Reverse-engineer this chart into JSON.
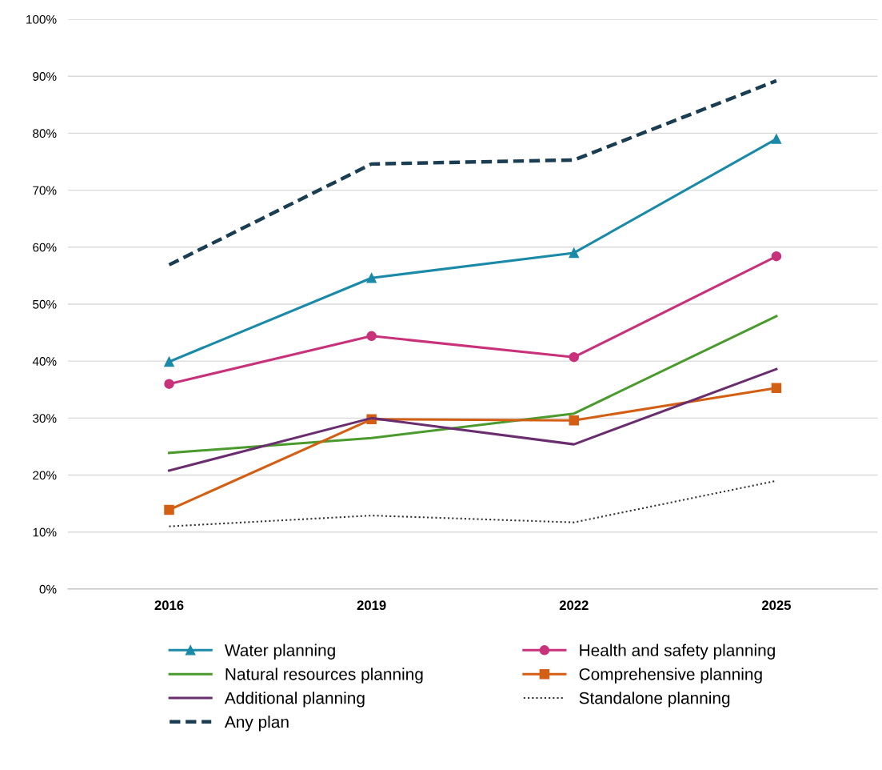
{
  "chart_data": {
    "type": "line",
    "categories": [
      "2016",
      "2019",
      "2022",
      "2025"
    ],
    "series": [
      {
        "name": "Water planning",
        "color": "#1a8aa8",
        "marker": "triangle",
        "line_style": "solid",
        "values": [
          39.9,
          54.6,
          59.0,
          79.0
        ]
      },
      {
        "name": "Health and safety planning",
        "color": "#c8327a",
        "marker": "circle",
        "line_style": "solid",
        "values": [
          36.0,
          44.4,
          40.7,
          58.4
        ]
      },
      {
        "name": "Natural resources planning",
        "color": "#4a9a2e",
        "marker": "none",
        "line_style": "solid",
        "values": [
          23.9,
          26.5,
          30.8,
          47.9
        ]
      },
      {
        "name": "Comprehensive planning",
        "color": "#d35f14",
        "marker": "square",
        "line_style": "solid",
        "values": [
          13.9,
          29.8,
          29.6,
          35.3
        ]
      },
      {
        "name": "Additional planning",
        "color": "#6a2e6e",
        "marker": "none",
        "line_style": "solid",
        "values": [
          20.8,
          30.0,
          25.4,
          38.6
        ]
      },
      {
        "name": "Standalone planning",
        "color": "#333333",
        "marker": "none",
        "line_style": "dotted",
        "values": [
          11.0,
          12.9,
          11.7,
          19.0
        ]
      },
      {
        "name": "Any plan",
        "color": "#1b3d52",
        "marker": "none",
        "line_style": "dashed",
        "values": [
          56.9,
          74.6,
          75.3,
          89.2
        ]
      }
    ],
    "ylim": [
      0,
      100
    ],
    "yticks": [
      {
        "value": 0,
        "label": "0%"
      },
      {
        "value": 10,
        "label": "10%"
      },
      {
        "value": 20,
        "label": "20%"
      },
      {
        "value": 30,
        "label": "30%"
      },
      {
        "value": 40,
        "label": "40%"
      },
      {
        "value": 50,
        "label": "50%"
      },
      {
        "value": 60,
        "label": "60%"
      },
      {
        "value": 70,
        "label": "70%"
      },
      {
        "value": 80,
        "label": "80%"
      },
      {
        "value": 90,
        "label": "90%"
      },
      {
        "value": 100,
        "label": "100%"
      }
    ],
    "grid": "y",
    "legend": "bottom"
  }
}
